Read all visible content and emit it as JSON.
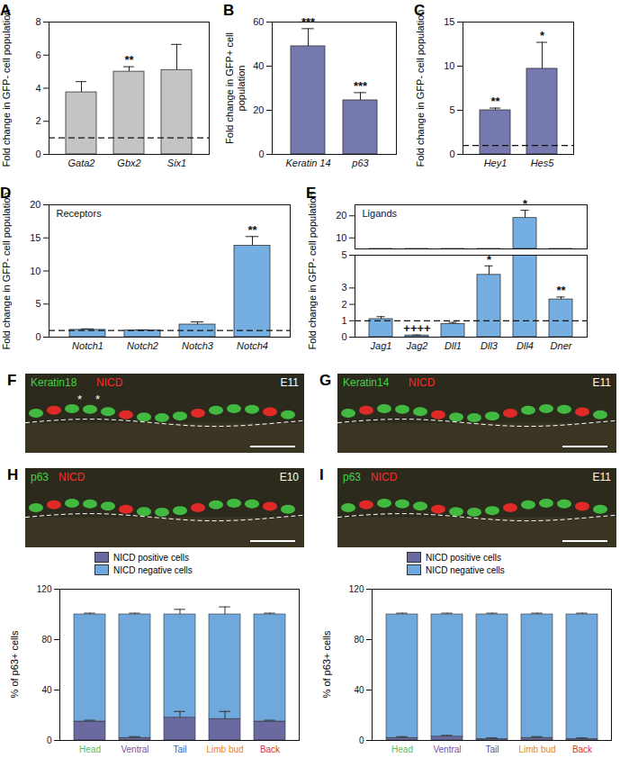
{
  "chart_data": [
    {
      "panel": "A",
      "type": "bar",
      "ylabel": "Fold change in GFP- cell population",
      "categories": [
        "Gata2",
        "Gbx2",
        "Six1"
      ],
      "values": [
        3.75,
        5.0,
        5.1
      ],
      "errors": [
        0.65,
        0.3,
        1.55
      ],
      "significance": [
        null,
        "**",
        null
      ],
      "reference": 1,
      "color": "#c4c4c4",
      "ylim": [
        0,
        8
      ],
      "yticks": [
        0,
        2,
        4,
        6,
        8
      ]
    },
    {
      "panel": "B",
      "type": "bar",
      "ylabel": "Fold change in GFP+ cell population",
      "categories": [
        "Keratin 14",
        "p63"
      ],
      "values": [
        49,
        24.5
      ],
      "errors": [
        8,
        3.5
      ],
      "significance": [
        "***",
        "***"
      ],
      "color": "#7679b0",
      "ylim": [
        0,
        60
      ],
      "yticks": [
        0,
        20,
        40,
        60
      ]
    },
    {
      "panel": "C",
      "type": "bar",
      "ylabel": "Fold change in GFP- cell population",
      "categories": [
        "Hey1",
        "Hes5"
      ],
      "values": [
        5.0,
        9.7
      ],
      "errors": [
        0.25,
        3.0
      ],
      "significance": [
        "**",
        "*"
      ],
      "reference": 1,
      "color": "#7679b0",
      "ylim": [
        0,
        15
      ],
      "yticks": [
        0,
        5,
        10,
        15
      ]
    },
    {
      "panel": "D",
      "type": "bar",
      "title": "Receptors",
      "ylabel": "Fold change in GFP- cell population",
      "categories": [
        "Notch1",
        "Notch2",
        "Notch3",
        "Notch4"
      ],
      "values": [
        1.1,
        1.0,
        1.9,
        13.8
      ],
      "errors": [
        0.15,
        0.1,
        0.4,
        1.4
      ],
      "significance": [
        null,
        null,
        null,
        "**"
      ],
      "reference": 1,
      "color": "#75aee0",
      "ylim": [
        0,
        20
      ],
      "yticks": [
        0,
        5,
        10,
        15,
        20
      ]
    },
    {
      "panel": "E",
      "type": "bar",
      "title": "Ligands",
      "ylabel": "Fold change in GFP- cell population",
      "categories": [
        "Jag1",
        "Jag2",
        "Dll1",
        "Dll3",
        "Dll4",
        "Dner"
      ],
      "values": [
        1.1,
        0.1,
        0.8,
        3.8,
        19,
        2.3
      ],
      "errors": [
        0.15,
        0.03,
        0.1,
        0.55,
        3.5,
        0.15
      ],
      "significance": [
        null,
        "++++",
        null,
        "*",
        "*",
        "**"
      ],
      "reference": 1,
      "color": "#75aee0",
      "ylim": [
        0,
        25
      ],
      "ybreak": 5,
      "yticks": [
        0,
        1,
        2,
        3,
        5,
        10,
        20
      ]
    },
    {
      "type": "bar",
      "stacked": true,
      "legend": "top",
      "ylabel": "% of p63+ cells",
      "categories": [
        "Head",
        "Ventral",
        "Tail",
        "Limb bud",
        "Back"
      ],
      "category_colors": [
        "#5cb85c",
        "#7b4fa0",
        "#2f5fb3",
        "#e8862a",
        "#d9342b"
      ],
      "series": [
        {
          "name": "NICD positive cells",
          "color": "#6a6aa0",
          "values": [
            15,
            2,
            18,
            17,
            15
          ],
          "errors": [
            1,
            1,
            5,
            6,
            1
          ]
        },
        {
          "name": "NICD negative cells",
          "color": "#6fa8dc",
          "values": [
            85,
            98,
            82,
            83,
            85
          ],
          "errors": [
            1,
            1,
            4,
            6,
            1
          ]
        }
      ],
      "ylim": [
        0,
        120
      ],
      "yticks": [
        0,
        40,
        80,
        120
      ]
    },
    {
      "type": "bar",
      "stacked": true,
      "legend": "top",
      "ylabel": "% of p63+ cells",
      "categories": [
        "Head",
        "Ventral",
        "Tail",
        "Limb bud",
        "Back"
      ],
      "category_colors": [
        "#5cb85c",
        "#7b4fa0",
        "#2f5fb3",
        "#e8862a",
        "#d9342b"
      ],
      "series": [
        {
          "name": "NICD positive cells",
          "color": "#6a6aa0",
          "values": [
            2,
            3,
            1,
            2,
            1
          ],
          "errors": [
            1,
            1,
            1,
            1,
            1
          ]
        },
        {
          "name": "NICD negative cells",
          "color": "#6fa8dc",
          "values": [
            98,
            97,
            99,
            98,
            99
          ],
          "errors": [
            1,
            1,
            1,
            1,
            1
          ]
        }
      ],
      "ylim": [
        0,
        120
      ],
      "yticks": [
        0,
        40,
        80,
        120
      ]
    }
  ],
  "images": [
    {
      "panel": "F",
      "stage": "E11",
      "stains": [
        {
          "name": "Keratin18",
          "color": "#46d246"
        },
        {
          "name": "NICD",
          "color": "#ff2a2a"
        }
      ],
      "annotations": [
        "*",
        "*"
      ]
    },
    {
      "panel": "G",
      "stage": "E11",
      "stains": [
        {
          "name": "Keratin14",
          "color": "#46d246"
        },
        {
          "name": "NICD",
          "color": "#ff2a2a"
        }
      ]
    },
    {
      "panel": "H",
      "stage": "E10",
      "stains": [
        {
          "name": "p63",
          "color": "#46d246"
        },
        {
          "name": "NICD",
          "color": "#ff2a2a"
        }
      ]
    },
    {
      "panel": "I",
      "stage": "E11",
      "stains": [
        {
          "name": "p63",
          "color": "#46d246"
        },
        {
          "name": "NICD",
          "color": "#ff2a2a"
        }
      ]
    }
  ]
}
